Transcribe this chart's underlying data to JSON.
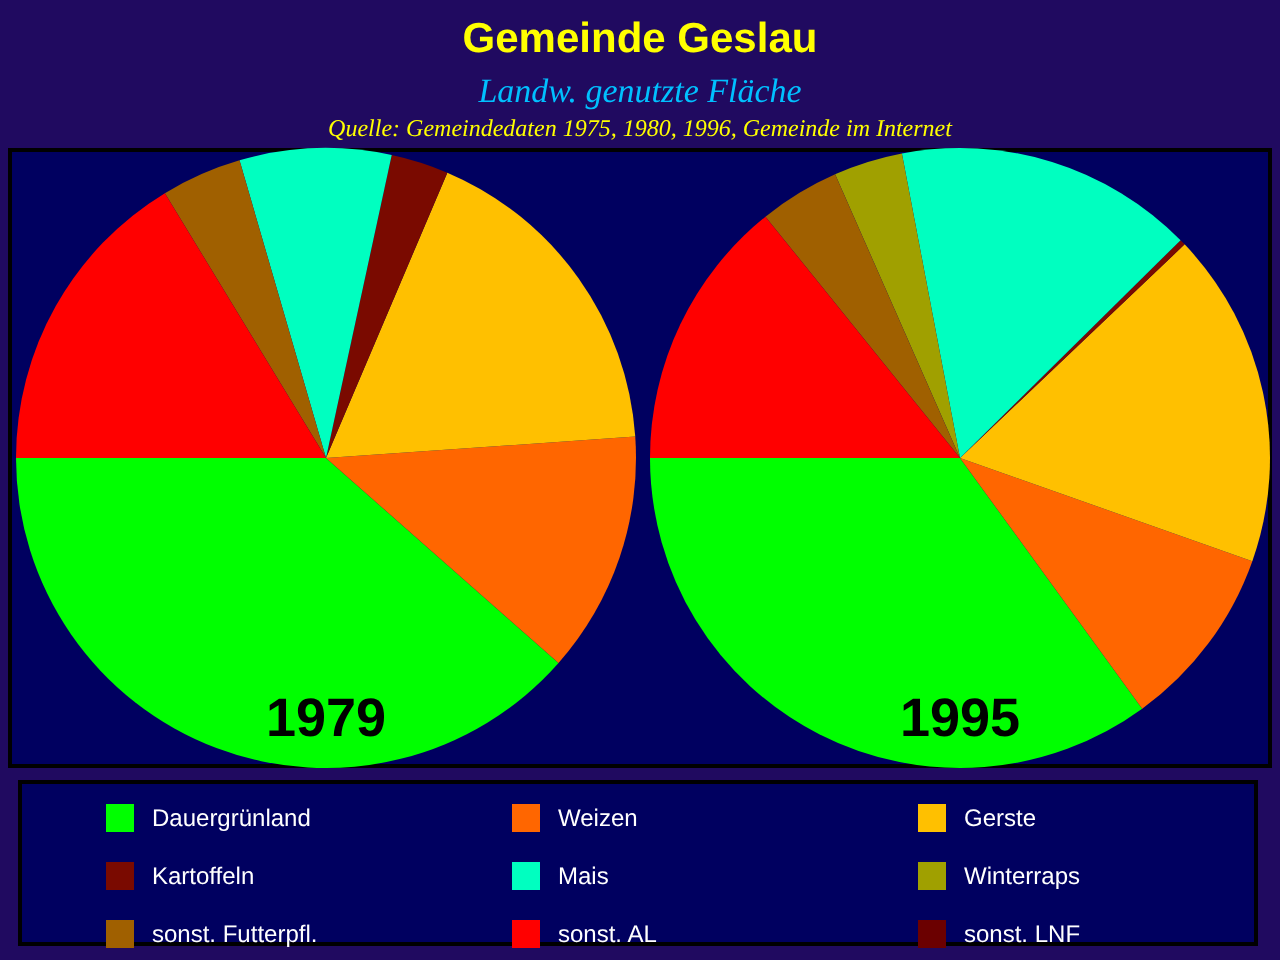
{
  "chart_data": {
    "type": "pie",
    "title": "Gemeinde Geslau",
    "subtitle": "Landw. genutzte Fläche",
    "annotations": [
      "Quelle: Gemeindedaten 1975, 1980, 1996, Gemeinde im Internet"
    ],
    "legend": "bottom",
    "categories": [
      "Dauergrünland",
      "Weizen",
      "Gerste",
      "Kartoffeln",
      "Mais",
      "Winterraps",
      "sonst. Futterpfl.",
      "sonst. AL",
      "sonst. LNF"
    ],
    "colors": [
      "#00ff00",
      "#ff6600",
      "#ffc000",
      "#7a0a00",
      "#00ffc0",
      "#a0a000",
      "#a06000",
      "#ff0000",
      "#6b0000"
    ],
    "series": [
      {
        "name": "1979",
        "values": [
          38.5,
          12.6,
          17.5,
          3.0,
          7.9,
          0,
          4.2,
          16.3,
          0
        ]
      },
      {
        "name": "1995",
        "values": [
          35.0,
          9.6,
          17.5,
          0.3,
          15.6,
          3.6,
          4.2,
          14.2,
          0
        ]
      }
    ]
  }
}
